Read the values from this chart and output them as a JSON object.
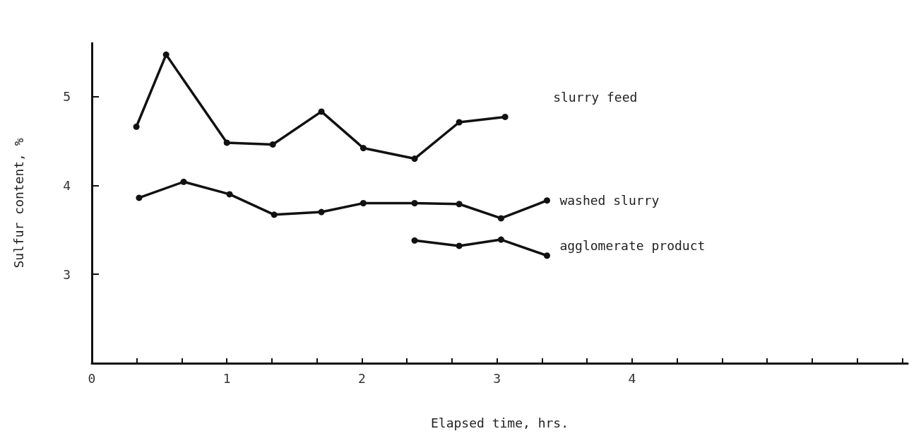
{
  "chart_data": {
    "type": "line",
    "xlabel": "Elapsed time, hrs.",
    "ylabel": "Sulfur content, %",
    "marker": "circle",
    "line_style": "solid",
    "grid": false,
    "legend": false,
    "xlim": [
      0,
      6.04
    ],
    "ylim": [
      2,
      5.6
    ],
    "xticks": [
      0,
      {
        "value": 0.333,
        "label": null
      },
      {
        "value": 0.667,
        "label": null
      },
      1,
      {
        "value": 1.333,
        "label": null
      },
      {
        "value": 1.667,
        "label": null
      },
      2,
      {
        "value": 2.333,
        "label": null
      },
      {
        "value": 2.667,
        "label": null
      },
      3,
      {
        "value": 3.333,
        "label": null
      },
      {
        "value": 3.667,
        "label": null
      },
      4,
      {
        "value": 4.333,
        "label": null
      },
      {
        "value": 4.667,
        "label": null
      },
      {
        "value": 5,
        "label": null
      },
      {
        "value": 5.333,
        "label": null
      },
      {
        "value": 5.667,
        "label": null
      },
      {
        "value": 6,
        "label": null
      }
    ],
    "yticks": [
      3,
      4,
      5
    ],
    "series": [
      {
        "name": "slurry feed",
        "color": "#111111",
        "x": [
          0.33,
          0.55,
          1.0,
          1.34,
          1.7,
          2.01,
          2.39,
          2.72,
          3.06
        ],
        "values": [
          4.66,
          5.47,
          4.48,
          4.46,
          4.83,
          4.42,
          4.3,
          4.71,
          4.77
        ]
      },
      {
        "name": "washed slurry",
        "color": "#111111",
        "x": [
          0.35,
          0.68,
          1.02,
          1.35,
          1.7,
          2.01,
          2.39,
          2.72,
          3.03,
          3.37
        ],
        "values": [
          3.86,
          4.04,
          3.9,
          3.67,
          3.7,
          3.8,
          3.8,
          3.79,
          3.63,
          3.83
        ]
      },
      {
        "name": "agglomerate product",
        "color": "#111111",
        "x": [
          2.39,
          2.72,
          3.03,
          3.37
        ],
        "values": [
          3.38,
          3.32,
          3.39,
          3.21
        ]
      }
    ]
  }
}
